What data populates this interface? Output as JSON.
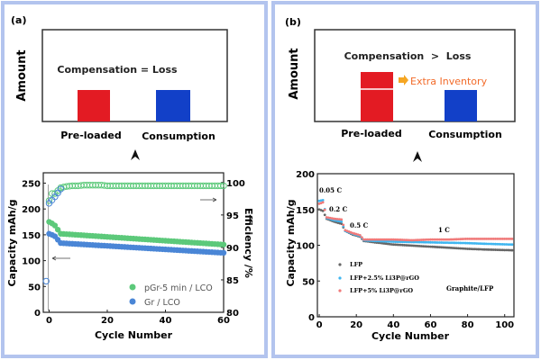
{
  "panel_a": {
    "label": "(a)",
    "schematic": {
      "ylabel": "Amount",
      "statement": "Compensation = Loss",
      "bars": [
        {
          "label": "Pre-loaded",
          "color": "#e31b23"
        },
        {
          "label": "Consumption",
          "color": "#1240c8"
        }
      ]
    }
  },
  "panel_b": {
    "label": "(b)",
    "schematic": {
      "ylabel": "Amount",
      "statement": "Compensation  >  Loss",
      "extra_label": "Extra Inventory",
      "extra_color": "#f26b2a",
      "bars": [
        {
          "label": "Pre-loaded",
          "color": "#e31b23"
        },
        {
          "label": "Consumption",
          "color": "#1240c8"
        }
      ]
    }
  },
  "chart_data": [
    {
      "type": "scatter",
      "xlabel": "Cycle Number",
      "ylabel": "Capacity mAh/g",
      "y2label": "Efficiency /%",
      "xlim": [
        -2,
        60
      ],
      "ylim": [
        0,
        270
      ],
      "y2lim": [
        80,
        101.5
      ],
      "xticks": [
        0,
        20,
        40,
        60
      ],
      "yticks": [
        0,
        50,
        100,
        150,
        200,
        250
      ],
      "y2ticks": [
        80,
        85,
        90,
        95,
        100
      ],
      "legend_position": "bottom-right",
      "series": [
        {
          "name": "pGr-5 min / LCO",
          "axis": "left",
          "marker": "filled",
          "color": "#5cc97a",
          "x": [
            0,
            1,
            2,
            4,
            8,
            12,
            16,
            20,
            24,
            28,
            32,
            36,
            40,
            44,
            48,
            52,
            56,
            60
          ],
          "y": [
            175,
            172,
            168,
            152,
            150.5,
            149,
            147.5,
            146,
            144.5,
            143,
            141.5,
            140,
            138.5,
            137,
            135.5,
            134,
            132.5,
            131
          ]
        },
        {
          "name": "Gr / LCO",
          "axis": "left",
          "marker": "filled",
          "color": "#4a86d6",
          "x": [
            0,
            1,
            2,
            4,
            8,
            12,
            16,
            20,
            24,
            28,
            32,
            36,
            40,
            44,
            48,
            52,
            56,
            60
          ],
          "y": [
            152,
            150,
            147,
            134,
            132.6,
            131.3,
            129.9,
            128.6,
            127.2,
            125.8,
            124.5,
            123.1,
            121.8,
            120.4,
            119,
            117.7,
            116.3,
            115
          ]
        },
        {
          "axis": "right",
          "marker": "open",
          "color": "#5cc97a",
          "x": [
            0,
            1,
            2,
            4,
            6,
            8,
            10,
            12,
            14,
            16,
            18,
            20,
            24,
            28,
            32,
            36,
            40,
            44,
            48,
            52,
            56,
            60
          ],
          "y": [
            97.2,
            98.3,
            98.3,
            99.2,
            99.4,
            99.5,
            99.5,
            99.6,
            99.6,
            99.6,
            99.6,
            99.5,
            99.5,
            99.5,
            99.5,
            99.5,
            99.5,
            99.5,
            99.5,
            99.5,
            99.5,
            99.5
          ]
        },
        {
          "axis": "right",
          "marker": "open",
          "color": "#4a86d6",
          "x": [
            -1,
            0,
            1,
            2,
            4
          ],
          "y": [
            84.8,
            96.8,
            97.3,
            97.8,
            99.0
          ]
        }
      ]
    },
    {
      "type": "scatter",
      "xlabel": "Cycle Number",
      "ylabel": "Capacity mAh/g",
      "xlim": [
        -1,
        105
      ],
      "ylim": [
        0,
        200
      ],
      "xticks": [
        0,
        20,
        40,
        60,
        80,
        100
      ],
      "yticks": [
        0,
        50,
        100,
        150,
        200
      ],
      "annotations": [
        "0.05 C",
        "0.2 C",
        "0.5 C",
        "1 C",
        "Graphite/LFP"
      ],
      "legend_position": "bottom-left",
      "series": [
        {
          "name": "LFP",
          "color": "#666666",
          "x": [
            0,
            2,
            4,
            8,
            12,
            14,
            18,
            22,
            24,
            30,
            40,
            50,
            60,
            70,
            80,
            90,
            104
          ],
          "y": [
            150,
            148,
            137,
            133,
            130,
            120,
            115,
            112,
            106,
            104,
            101,
            99.5,
            98,
            96.5,
            95,
            94,
            93
          ]
        },
        {
          "name": "LFP+2.5% Li3P@rGO",
          "color": "#3fb6f0",
          "x": [
            0,
            2,
            4,
            8,
            12,
            14,
            18,
            22,
            24,
            30,
            40,
            50,
            60,
            70,
            80,
            90,
            104
          ],
          "y": [
            162,
            163,
            138,
            135,
            133,
            120,
            116,
            113,
            107,
            106,
            105,
            104.5,
            104,
            103.5,
            103,
            102,
            101
          ]
        },
        {
          "name": "LFP+5% Li3P@rGO",
          "color": "#f07a7a",
          "x": [
            0,
            2,
            4,
            8,
            12,
            14,
            18,
            22,
            24,
            30,
            40,
            50,
            60,
            70,
            80,
            90,
            104
          ],
          "y": [
            158,
            160,
            139,
            137,
            136,
            121,
            117,
            114,
            108,
            108,
            108,
            107,
            108,
            108,
            109,
            109,
            109
          ]
        }
      ]
    }
  ]
}
